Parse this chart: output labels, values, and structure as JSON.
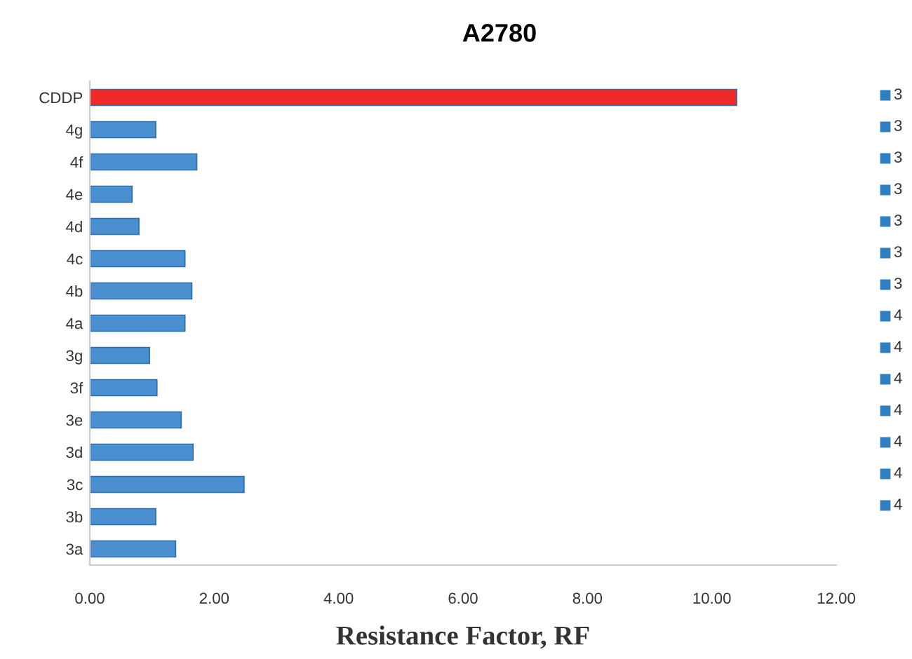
{
  "chart_data": {
    "type": "bar",
    "orientation": "horizontal",
    "title": "A2780",
    "xlabel": "Resistance Factor, RF",
    "categories": [
      "CDDP",
      "4g",
      "4f",
      "4e",
      "4d",
      "4c",
      "4b",
      "4a",
      "3g",
      "3f",
      "3e",
      "3d",
      "3c",
      "3b",
      "3a"
    ],
    "values": [
      10.4,
      1.06,
      1.72,
      0.68,
      0.79,
      1.53,
      1.64,
      1.53,
      0.96,
      1.08,
      1.47,
      1.66,
      2.48,
      1.06,
      1.38
    ],
    "colors": [
      "#ee2a2a",
      "#4a8fcf",
      "#4a8fcf",
      "#4a8fcf",
      "#4a8fcf",
      "#4a8fcf",
      "#4a8fcf",
      "#4a8fcf",
      "#4a8fcf",
      "#4a8fcf",
      "#4a8fcf",
      "#4a8fcf",
      "#4a8fcf",
      "#4a8fcf",
      "#4a8fcf"
    ],
    "xlim": [
      0,
      12
    ],
    "xticks": [
      {
        "value": 0,
        "label": "0.00"
      },
      {
        "value": 2,
        "label": "2.00"
      },
      {
        "value": 4,
        "label": "4.00"
      },
      {
        "value": 6,
        "label": "6.00"
      },
      {
        "value": 8,
        "label": "8.00"
      },
      {
        "value": 10,
        "label": "10.00"
      },
      {
        "value": 12,
        "label": "12.00"
      }
    ],
    "annotations": [
      "3",
      "3",
      "3",
      "3",
      "3",
      "3",
      "3",
      "4",
      "4",
      "4",
      "4",
      "4",
      "4",
      "4"
    ],
    "grid": false
  }
}
